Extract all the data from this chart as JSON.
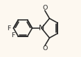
{
  "bg_color": "#fdf8f0",
  "line_color": "#2a2a2a",
  "line_width": 1.2,
  "font_size": 6.8,
  "font_color": "#2a2a2a",
  "label_F1": "F",
  "label_F2": "F",
  "label_N": "N",
  "label_O1": "O",
  "label_O2": "O",
  "fig_width": 1.17,
  "fig_height": 0.83,
  "dpi": 100
}
